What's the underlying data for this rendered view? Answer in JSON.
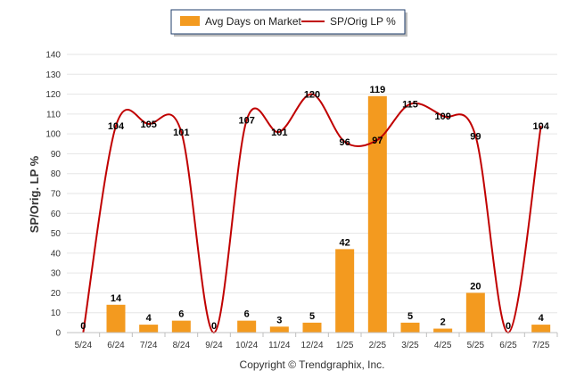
{
  "chart_data": {
    "type": "bar",
    "categories": [
      "5/24",
      "6/24",
      "7/24",
      "8/24",
      "9/24",
      "10/24",
      "11/24",
      "12/24",
      "1/25",
      "2/25",
      "3/25",
      "4/25",
      "5/25",
      "6/25",
      "7/25"
    ],
    "series": [
      {
        "name": "Avg Days on Market",
        "type": "bar",
        "color": "#f39a1f",
        "values": [
          0,
          14,
          4,
          6,
          0,
          6,
          3,
          5,
          42,
          119,
          5,
          2,
          20,
          0,
          4
        ]
      },
      {
        "name": "SP/Orig LP %",
        "type": "line",
        "color": "#c00000",
        "values": [
          0,
          104,
          105,
          101,
          0,
          107,
          101,
          120,
          96,
          97,
          115,
          109,
          99,
          0,
          104
        ]
      }
    ],
    "xlabel": "",
    "ylabel": "SP/Orig. LP %",
    "ylim": [
      0,
      140
    ],
    "yticks": [
      0,
      10,
      20,
      30,
      40,
      50,
      60,
      70,
      80,
      90,
      100,
      110,
      120,
      130,
      140
    ],
    "grid": true,
    "legend_position": "top-center"
  },
  "credit": "Copyright © Trendgraphix, Inc."
}
